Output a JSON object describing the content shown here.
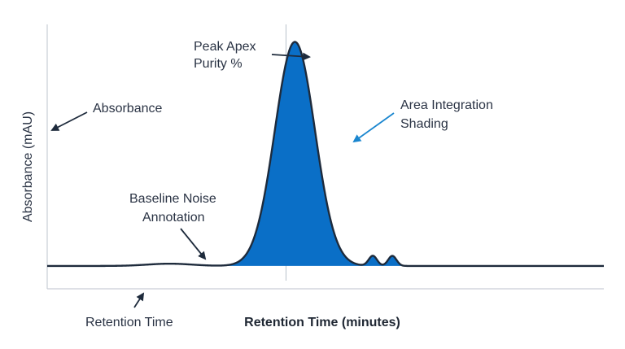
{
  "chart_data": {
    "type": "area",
    "title": "",
    "xlabel": "Retention Time (minutes)",
    "ylabel": "Absorbance (mAU)",
    "grid": false,
    "legend": "none",
    "colors": {
      "line": "#1e2b3c",
      "fill": "#0a6fc7",
      "axis": "#c9ced6",
      "arrow_dark": "#1e2b3c",
      "arrow_blue": "#1a86cf",
      "text": "#2a3344"
    },
    "signal": {
      "baseline": 0.2,
      "noise_hump": {
        "center": 22,
        "width": 4,
        "height": 1.0
      },
      "main_peak": {
        "center": 44.5,
        "width": 3.6,
        "height": 100,
        "integrated": true
      },
      "minor_peaks": [
        {
          "center": 58.5,
          "width": 0.75,
          "height": 4.5
        },
        {
          "center": 62.0,
          "width": 0.75,
          "height": 4.5
        }
      ]
    },
    "xlim": [
      0,
      100
    ],
    "ylim": [
      -10,
      108
    ],
    "annotations": {
      "peak_apex": [
        "Peak Apex",
        "Purity %"
      ],
      "area_integration": [
        "Area Integration",
        "Shading"
      ],
      "absorbance": "Absorbance",
      "baseline_noise": [
        "Baseline Noise",
        "Annotation"
      ],
      "retention_time": "Retention Time"
    }
  }
}
